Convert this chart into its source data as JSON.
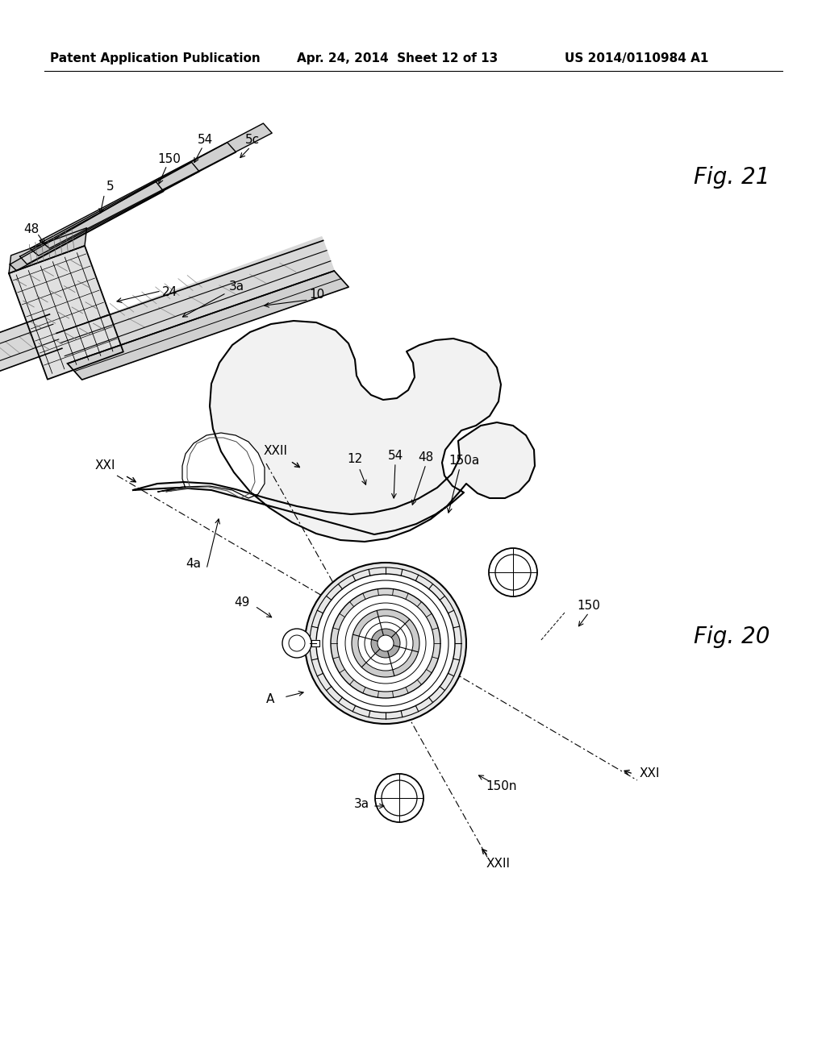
{
  "background_color": "#ffffff",
  "header_left": "Patent Application Publication",
  "header_mid": "Apr. 24, 2014  Sheet 12 of 13",
  "header_right": "US 2014/0110984 A1",
  "fig21_label": "Fig. 21",
  "fig20_label": "Fig. 20"
}
